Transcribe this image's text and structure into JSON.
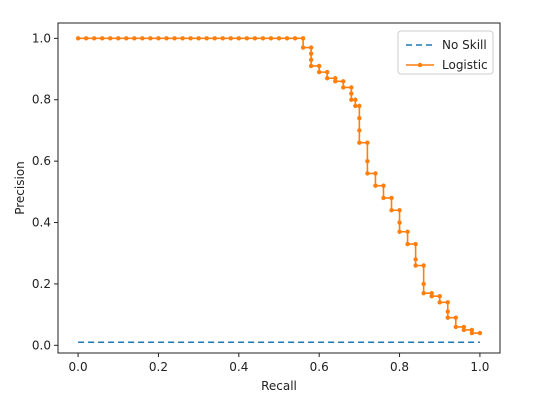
{
  "chart_data": {
    "type": "line",
    "xlabel": "Recall",
    "ylabel": "Precision",
    "xlim": [
      -0.05,
      1.05
    ],
    "ylim": [
      -0.025,
      1.05
    ],
    "xticks": [
      "0.0",
      "0.2",
      "0.4",
      "0.6",
      "0.8",
      "1.0"
    ],
    "yticks": [
      "0.0",
      "0.2",
      "0.4",
      "0.6",
      "0.8",
      "1.0"
    ],
    "grid": false,
    "legend_position": "top-right",
    "series": [
      {
        "name": "No Skill",
        "style": "dashed",
        "color": "#1f77b4",
        "x": [
          0.0,
          1.0
        ],
        "y": [
          0.01,
          0.01
        ]
      },
      {
        "name": "Logistic",
        "style": "solid-with-dots",
        "color": "#ff7f0e",
        "x": [
          0.0,
          0.02,
          0.04,
          0.06,
          0.08,
          0.1,
          0.12,
          0.14,
          0.16,
          0.18,
          0.2,
          0.22,
          0.24,
          0.26,
          0.28,
          0.3,
          0.32,
          0.34,
          0.36,
          0.38,
          0.4,
          0.42,
          0.44,
          0.46,
          0.48,
          0.5,
          0.52,
          0.54,
          0.56,
          0.56,
          0.58,
          0.58,
          0.58,
          0.58,
          0.6,
          0.6,
          0.62,
          0.62,
          0.64,
          0.64,
          0.66,
          0.66,
          0.68,
          0.68,
          0.68,
          0.69,
          0.69,
          0.7,
          0.7,
          0.7,
          0.7,
          0.72,
          0.72,
          0.72,
          0.74,
          0.74,
          0.76,
          0.76,
          0.78,
          0.78,
          0.8,
          0.8,
          0.8,
          0.82,
          0.82,
          0.84,
          0.84,
          0.84,
          0.86,
          0.86,
          0.86,
          0.88,
          0.88,
          0.9,
          0.9,
          0.92,
          0.92,
          0.92,
          0.94,
          0.94,
          0.96,
          0.96,
          0.98,
          0.98,
          1.0
        ],
        "y": [
          1.0,
          1.0,
          1.0,
          1.0,
          1.0,
          1.0,
          1.0,
          1.0,
          1.0,
          1.0,
          1.0,
          1.0,
          1.0,
          1.0,
          1.0,
          1.0,
          1.0,
          1.0,
          1.0,
          1.0,
          1.0,
          1.0,
          1.0,
          1.0,
          1.0,
          1.0,
          1.0,
          1.0,
          1.0,
          0.97,
          0.97,
          0.95,
          0.93,
          0.91,
          0.91,
          0.89,
          0.89,
          0.87,
          0.87,
          0.86,
          0.86,
          0.84,
          0.84,
          0.82,
          0.8,
          0.8,
          0.78,
          0.78,
          0.74,
          0.7,
          0.66,
          0.66,
          0.6,
          0.56,
          0.56,
          0.52,
          0.52,
          0.48,
          0.48,
          0.44,
          0.44,
          0.4,
          0.37,
          0.37,
          0.33,
          0.33,
          0.28,
          0.26,
          0.26,
          0.2,
          0.17,
          0.17,
          0.16,
          0.16,
          0.14,
          0.14,
          0.11,
          0.09,
          0.09,
          0.06,
          0.06,
          0.05,
          0.05,
          0.04,
          0.04
        ]
      }
    ]
  }
}
